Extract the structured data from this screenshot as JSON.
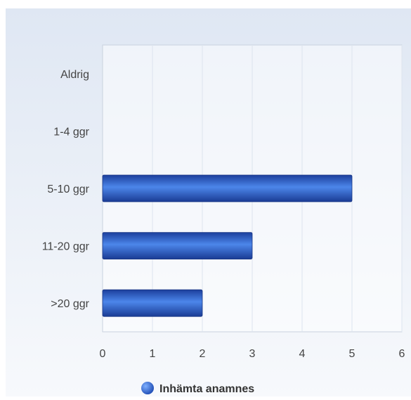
{
  "chart_data": {
    "type": "bar",
    "orientation": "horizontal",
    "categories": [
      "Aldrig",
      "1-4 ggr",
      "5-10 ggr",
      "11-20 ggr",
      ">20 ggr"
    ],
    "series": [
      {
        "name": "Inhämta anamnes",
        "values": [
          0,
          0,
          5,
          3,
          2
        ],
        "color": "#2f63c9"
      }
    ],
    "xlim": [
      0,
      6
    ],
    "xticks": [
      0,
      1,
      2,
      3,
      4,
      5,
      6
    ],
    "grid": true,
    "legend_position": "bottom"
  }
}
